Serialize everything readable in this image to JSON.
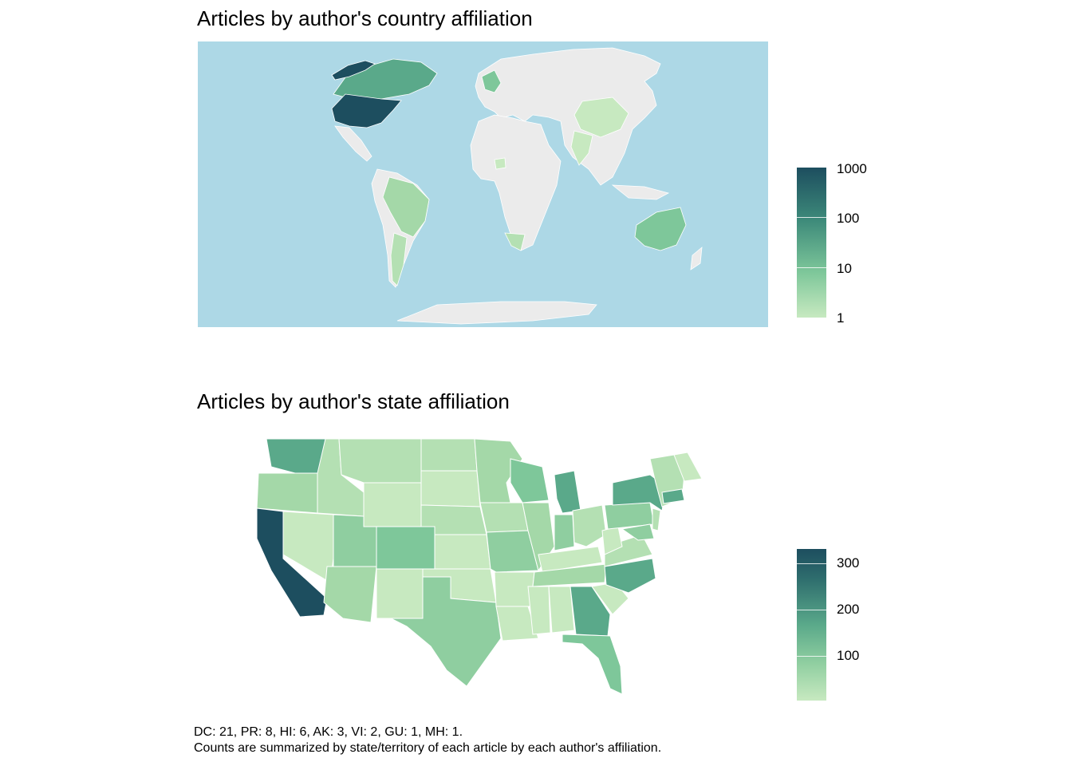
{
  "world": {
    "title": "Articles by author's country affiliation",
    "ocean_color": "#add8e6",
    "land_color": "#ebebeb",
    "legend": {
      "scale": "log10",
      "min": 1,
      "max": 1000,
      "ticks": [
        "1000",
        "100",
        "10",
        "1"
      ]
    },
    "highlighted_countries": [
      {
        "name": "United States",
        "level": "max"
      },
      {
        "name": "Canada",
        "level": "high"
      },
      {
        "name": "Greenland",
        "level": "max"
      },
      {
        "name": "Australia",
        "level": "mid"
      },
      {
        "name": "Brazil",
        "level": "low"
      },
      {
        "name": "Argentina",
        "level": "low"
      },
      {
        "name": "China",
        "level": "low"
      },
      {
        "name": "India",
        "level": "low"
      },
      {
        "name": "South Africa",
        "level": "low"
      },
      {
        "name": "Nigeria",
        "level": "low"
      }
    ]
  },
  "us": {
    "title": "Articles by author's state affiliation",
    "legend": {
      "scale": "linear",
      "min": 1,
      "max": 330,
      "ticks": [
        "300",
        "200",
        "100"
      ]
    },
    "colors": {
      "low": "#c7e9c0",
      "high": "#1d4e5f"
    }
  },
  "caption": {
    "line1": "DC: 21, PR: 8, HI: 6, AK: 3, VI: 2, GU: 1, MH: 1.",
    "line2": "Counts are summarized by state/territory of each article by each author's affiliation."
  }
}
